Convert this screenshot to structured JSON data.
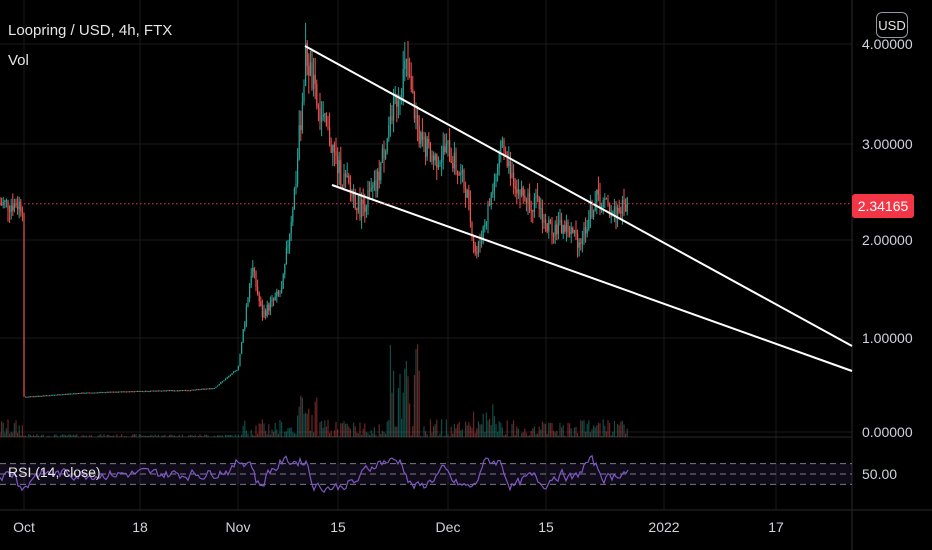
{
  "header": {
    "symbol_title": "Loopring / USD, 4h, FTX",
    "volume_label": "Vol",
    "currency_button": "USD"
  },
  "price_badge": {
    "value": "2.34165"
  },
  "rsi": {
    "label": "RSI (14, close)",
    "level_label": "50.00"
  },
  "colors": {
    "background": "#000000",
    "up": "#26a69a",
    "down": "#ef5350",
    "rsi_line": "#7e57c2",
    "current_price": "#f23645",
    "trendline": "#ffffff"
  },
  "chart_data": {
    "type": "candlestick",
    "y_axis_ticks": [
      "4.00000",
      "3.00000",
      "2.00000",
      "1.00000",
      "0.00000"
    ],
    "y_axis_values": [
      4,
      3,
      2,
      1,
      0
    ],
    "x_axis_ticks": [
      "Oct",
      "18",
      "Nov",
      "15",
      "Dec",
      "15",
      "2022",
      "17"
    ],
    "ylim": [
      0,
      4.1
    ],
    "current_price": 2.34165,
    "price_path": [
      [
        "Oct",
        0.36
      ],
      [
        "11 Oct",
        0.4
      ],
      [
        "18",
        0.42
      ],
      [
        "25 Oct",
        0.43
      ],
      [
        "29 Oct",
        0.45
      ],
      [
        "Nov",
        0.65
      ],
      [
        "3 Nov",
        1.7
      ],
      [
        "5 Nov",
        1.2
      ],
      [
        "7 Nov",
        1.45
      ],
      [
        "8 Nov",
        2.6
      ],
      [
        "10 Nov",
        3.9
      ],
      [
        "11 Nov",
        3.3
      ],
      [
        "13 Nov",
        3.0
      ],
      [
        "15",
        2.7
      ],
      [
        "18 Nov",
        2.3
      ],
      [
        "21 Nov",
        2.5
      ],
      [
        "23 Nov",
        3.2
      ],
      [
        "25 Nov",
        3.75
      ],
      [
        "27 Nov",
        3.0
      ],
      [
        "29 Nov",
        2.8
      ],
      [
        "Dec",
        2.9
      ],
      [
        "3 Dec",
        2.5
      ],
      [
        "5 Dec",
        1.8
      ],
      [
        "6 Dec",
        2.2
      ],
      [
        "9 Dec",
        2.9
      ],
      [
        "11 Dec",
        2.45
      ],
      [
        "14 Dec",
        2.3
      ],
      [
        "15",
        2.1
      ],
      [
        "18 Dec",
        2.1
      ],
      [
        "20 Dec",
        1.95
      ],
      [
        "22 Dec",
        2.4
      ],
      [
        "24 Dec",
        2.25
      ],
      [
        "25 Dec",
        2.34
      ]
    ],
    "rsi_range": [
      0,
      100
    ],
    "rsi_bands": [
      70,
      50,
      30
    ]
  }
}
